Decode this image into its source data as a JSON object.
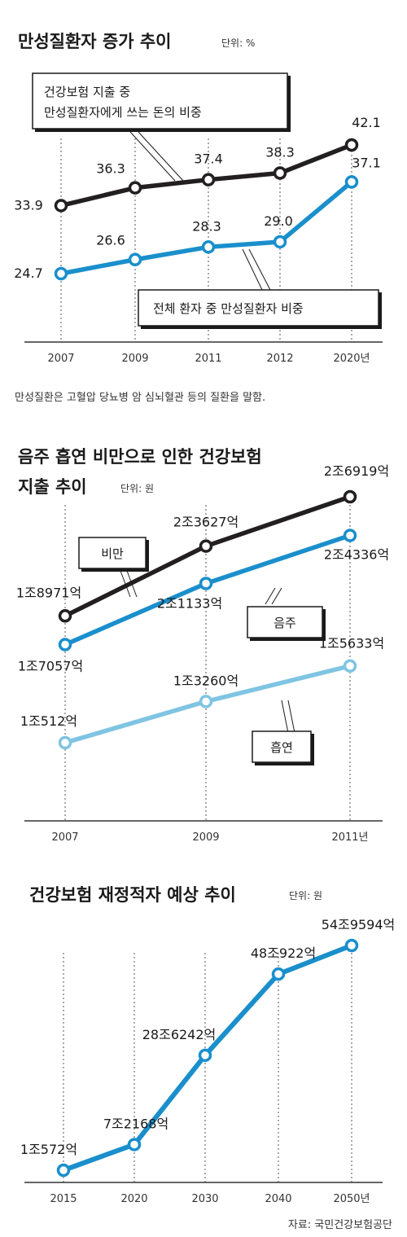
{
  "chart_data": [
    {
      "type": "line",
      "title": "만성질환자 증가 추이",
      "unit_label": "단위: %",
      "categories": [
        "2007",
        "2009",
        "2011",
        "2012",
        "2020년"
      ],
      "series": [
        {
          "name": "건강보험 지출 중 만성질환자에게 쓰는 돈의 비중",
          "name_lines": [
            "건강보험 지출 중",
            "만성질환자에게 쓰는 돈의 비중"
          ],
          "values": [
            33.9,
            36.3,
            37.4,
            38.3,
            42.1
          ],
          "labels": [
            "33.9",
            "36.3",
            "37.4",
            "38.3",
            "42.1"
          ],
          "color": "#231f20"
        },
        {
          "name": "전체 환자 중 만성질환자 비중",
          "name_lines": [
            "전체 환자 중 만성질환자 비중"
          ],
          "values": [
            24.7,
            26.6,
            28.3,
            29.0,
            37.1
          ],
          "labels": [
            "24.7",
            "26.6",
            "28.3",
            "29.0",
            "37.1"
          ],
          "color": "#1a8fcc"
        }
      ],
      "note": "만성질환은 고혈압 당뇨병 암 심뇌혈관 등의 질환을 말함."
    },
    {
      "type": "line",
      "title_lines": [
        "음주 흡연 비만으로 인한 건강보험",
        "지출 추이"
      ],
      "unit_label": "단위: 원",
      "categories": [
        "2007",
        "2009",
        "2011년"
      ],
      "series": [
        {
          "name": "비만",
          "values_억원": [
            18971,
            23627,
            26919
          ],
          "labels": [
            "1조8971억",
            "2조3627억",
            "2조6919억"
          ],
          "color": "#231f20"
        },
        {
          "name": "음주",
          "values_억원": [
            17057,
            21133,
            24336
          ],
          "labels": [
            "1조7057억",
            "2조1133억",
            "2조4336억"
          ],
          "color": "#1a8fcc"
        },
        {
          "name": "흡연",
          "values_억원": [
            10512,
            13260,
            15633
          ],
          "labels": [
            "1조512억",
            "1조3260억",
            "1조5633억"
          ],
          "color": "#7fc4e2"
        }
      ]
    },
    {
      "type": "line",
      "title": "건강보험 재정적자 예상 추이",
      "unit_label": "단위: 원",
      "categories": [
        "2015",
        "2020",
        "2030",
        "2040",
        "2050년"
      ],
      "series": [
        {
          "values_억원": [
            10572,
            72168,
            286242,
            480922,
            549594
          ],
          "labels": [
            "1조572억",
            "7조2168억",
            "28조6242억",
            "48조922억",
            "54조9594억"
          ],
          "color": "#1a8fcc"
        }
      ]
    }
  ],
  "source": "자료: 국민건강보험공단"
}
